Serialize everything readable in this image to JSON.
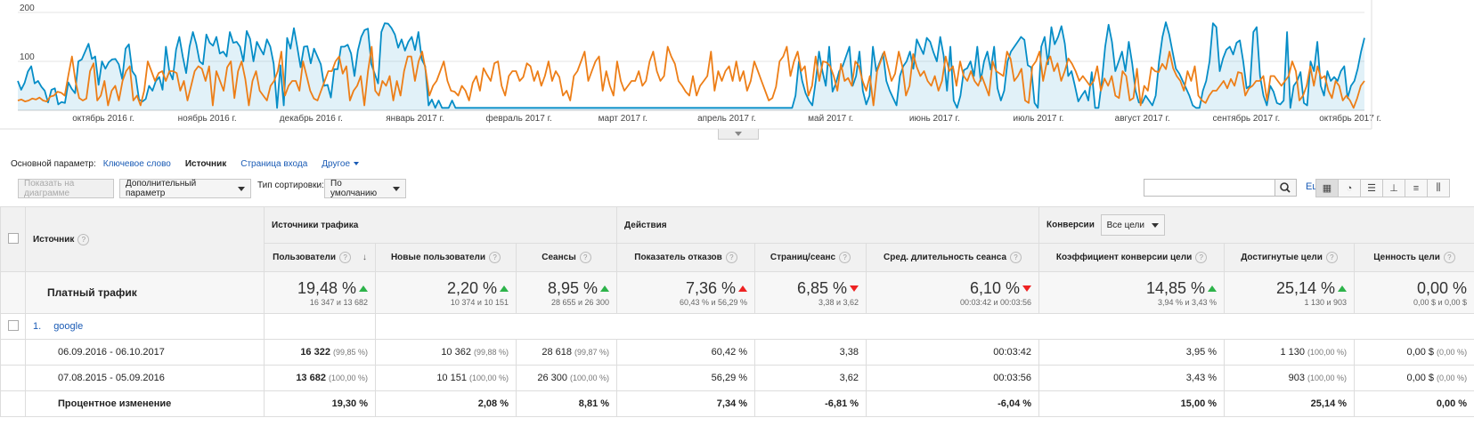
{
  "chart_data": {
    "type": "line",
    "title": "",
    "y_ticks": [
      "200",
      "100"
    ],
    "y_range": [
      0,
      200
    ],
    "x_labels": [
      "октябрь 2016 г.",
      "ноябрь 2016 г.",
      "декабрь 2016 г.",
      "январь 2017 г.",
      "февраль 2017 г.",
      "март 2017 г.",
      "апрель 2017 г.",
      "май 2017 г.",
      "июнь 2017 г.",
      "июль 2017 г.",
      "август 2017 г.",
      "сентябрь 2017 г.",
      "октябрь 2017 г."
    ],
    "series": [
      {
        "color": "#058dc7",
        "values": [
          60,
          42,
          56,
          79,
          90,
          55,
          60,
          48,
          40,
          16,
          42,
          45,
          12,
          17,
          15,
          57,
          44,
          35,
          100,
          104,
          120,
          136,
          105,
          110,
          52,
          100,
          85,
          98,
          104,
          105,
          94,
          64,
          126,
          135,
          80,
          70,
          22,
          18,
          23,
          50,
          40,
          60,
          68,
          42,
          130,
          80,
          63,
          124,
          150,
          110,
          76,
          130,
          160,
          136,
          100,
          94,
          155,
          138,
          132,
          150,
          116,
          120,
          110,
          160,
          138,
          140,
          130,
          100,
          162,
          146,
          100,
          140,
          126,
          114,
          145,
          130,
          95,
          5,
          92,
          10,
          148,
          126,
          168,
          130,
          88,
          130,
          131,
          96,
          126,
          110,
          94,
          50,
          52,
          26,
          84,
          84,
          130,
          130,
          134,
          116,
          70,
          122,
          150,
          164,
          167,
          95,
          75,
          55,
          160,
          178,
          177,
          168,
          155,
          128,
          145,
          122,
          140,
          150,
          123,
          160,
          104,
          90,
          10,
          22,
          5,
          20,
          5,
          5,
          5,
          20,
          5,
          5,
          5,
          5,
          5,
          5,
          5,
          5,
          5,
          5,
          5,
          5,
          5,
          5,
          5,
          5,
          5,
          5,
          5,
          5,
          5,
          5,
          5,
          5,
          5,
          5,
          5,
          5,
          5,
          5,
          5,
          5,
          5,
          5,
          5,
          5,
          5,
          5,
          5,
          5,
          5,
          5,
          5,
          5,
          5,
          5,
          5,
          5,
          5,
          5,
          5,
          5,
          5,
          5,
          5,
          5,
          5,
          5,
          5,
          5,
          5,
          5,
          5,
          5,
          5,
          5,
          5,
          5,
          5,
          5,
          5,
          5,
          5,
          5,
          5,
          5,
          5,
          5,
          5,
          5,
          5,
          5,
          5,
          5,
          5,
          5,
          5,
          5,
          5,
          5,
          5,
          5,
          5,
          5,
          5,
          5,
          5,
          5,
          5,
          5,
          5,
          30,
          100,
          60,
          35,
          20,
          10,
          60,
          120,
          80,
          50,
          130,
          38,
          55,
          80,
          90,
          110,
          130,
          50,
          70,
          120,
          40,
          12,
          30,
          130,
          80,
          98,
          116,
          60,
          40,
          25,
          10,
          70,
          90,
          100,
          120,
          85,
          145,
          130,
          115,
          148,
          140,
          118,
          100,
          150,
          112,
          40,
          130,
          20,
          5,
          30,
          82,
          86,
          100,
          70,
          130,
          60,
          100,
          120,
          83,
          130,
          45,
          20,
          40,
          100,
          120,
          130,
          140,
          150,
          144,
          92,
          88,
          15,
          5,
          130,
          150,
          94,
          170,
          135,
          150,
          172,
          136,
          70,
          80,
          50,
          18,
          30,
          40,
          20,
          78,
          5,
          5,
          60,
          130,
          175,
          140,
          80,
          100,
          120,
          80,
          140,
          96,
          40,
          16,
          15,
          30,
          20,
          10,
          30,
          100,
          150,
          180,
          155,
          120,
          85,
          75,
          60,
          45,
          30,
          10,
          5,
          5,
          40,
          60,
          100,
          178,
          170,
          80,
          106,
          124,
          130,
          114,
          138,
          143,
          100,
          45,
          50,
          160,
          170,
          70,
          30,
          10,
          50,
          38,
          15,
          12,
          20,
          160,
          5,
          50,
          60,
          78,
          15,
          10,
          100,
          80,
          140,
          50,
          30,
          80,
          60,
          68,
          60,
          80,
          90,
          25,
          50,
          60,
          85,
          120,
          148
        ]
      },
      {
        "color": "#ed7e17",
        "values": [
          20,
          22,
          18,
          20,
          24,
          22,
          26,
          20,
          18,
          28,
          30,
          38,
          36,
          30,
          72,
          110,
          58,
          25,
          20,
          24,
          80,
          96,
          20,
          30,
          60,
          10,
          40,
          50,
          20,
          60,
          80,
          90,
          20,
          30,
          10,
          40,
          100,
          80,
          60,
          76,
          80,
          60,
          80,
          80,
          76,
          40,
          60,
          20,
          50,
          80,
          90,
          85,
          60,
          90,
          10,
          80,
          60,
          40,
          88,
          100,
          25,
          80,
          100,
          64,
          10,
          60,
          80,
          40,
          30,
          20,
          50,
          60,
          80,
          120,
          30,
          50,
          60,
          60,
          40,
          100,
          70,
          40,
          24,
          20,
          40,
          60,
          80,
          80,
          100,
          110,
          75,
          90,
          20,
          40,
          50,
          70,
          10,
          80,
          130,
          40,
          30,
          60,
          50,
          70,
          20,
          60,
          30,
          80,
          110,
          110,
          60,
          100,
          120,
          80,
          30,
          50,
          60,
          80,
          100,
          60,
          40,
          38,
          30,
          50,
          40,
          20,
          56,
          70,
          40,
          86,
          72,
          60,
          96,
          100,
          50,
          30,
          70,
          80,
          80,
          60,
          68,
          96,
          90,
          60,
          80,
          50,
          70,
          100,
          60,
          80,
          68,
          30,
          40,
          20,
          70,
          80,
          100,
          120,
          60,
          80,
          100,
          110,
          40,
          80,
          50,
          30,
          100,
          60,
          40,
          50,
          60,
          60,
          80,
          50,
          60,
          100,
          120,
          80,
          60,
          70,
          130,
          110,
          95,
          60,
          50,
          38,
          30,
          70,
          30,
          50,
          60,
          70,
          120,
          40,
          80,
          60,
          80,
          90,
          60,
          100,
          60,
          80,
          40,
          60,
          100,
          80,
          60,
          40,
          20,
          25,
          48,
          100,
          110,
          130,
          70,
          100,
          120,
          80,
          90,
          30,
          50,
          110,
          60,
          100,
          98,
          90,
          70,
          40,
          95,
          60,
          66,
          50,
          100,
          90,
          60,
          40,
          70,
          10,
          80,
          100,
          120,
          90,
          60,
          75,
          120,
          90,
          30,
          50,
          115,
          88,
          70,
          80,
          60,
          50,
          70,
          40,
          60,
          110,
          80,
          90,
          50,
          100,
          70,
          60,
          80,
          60,
          50,
          70,
          50,
          30,
          100,
          80,
          75,
          70,
          120,
          105,
          60,
          70,
          85,
          20,
          15,
          90,
          100,
          120,
          60,
          98,
          110,
          80,
          96,
          60,
          80,
          106,
          95,
          80,
          60,
          70,
          60,
          50,
          60,
          90,
          40,
          65,
          50,
          70,
          30,
          25,
          80,
          70,
          20,
          25,
          85,
          10,
          50,
          40,
          88,
          80,
          78,
          95,
          84,
          120,
          86,
          70,
          60,
          40,
          80,
          60,
          90,
          30,
          20,
          15,
          30,
          40,
          40,
          50,
          60,
          45,
          64,
          50,
          78,
          76,
          30,
          45,
          50,
          60,
          60,
          70,
          20,
          70,
          70,
          60,
          50,
          60,
          70,
          100,
          80,
          20,
          30,
          50,
          90,
          50,
          90,
          65,
          70,
          40,
          25,
          60,
          50,
          20,
          30,
          20,
          5,
          25,
          50,
          60
        ]
      }
    ]
  },
  "dimension_bar": {
    "label": "Основной параметр:",
    "opt1": "Ключевое слово",
    "active": "Источник",
    "opt3": "Страница входа",
    "opt4": "Другое"
  },
  "toolbar": {
    "plot_rows": "Показать на диаграмме",
    "secondary": "Дополнительный параметр",
    "sort_label": "Тип сортировки:",
    "sort_value": "По умолчанию",
    "more": "Ещё..."
  },
  "table": {
    "dim_header": "Источник",
    "groups": {
      "acquisition": "Источники трафика",
      "behavior": "Действия",
      "conversions": "Конверсии",
      "goal_select": "Все цели"
    },
    "columns": [
      "Пользователи",
      "Новые пользователи",
      "Сеансы",
      "Показатель отказов",
      "Страниц/сеанс",
      "Сред. длительность сеанса",
      "Коэффициент конверсии цели",
      "Достигнутые цели",
      "Ценность цели"
    ],
    "totals": {
      "label": "Платный трафик",
      "cells": [
        {
          "big": "19,48 %",
          "sm": "16 347 и 13 682",
          "dir": "up"
        },
        {
          "big": "2,20 %",
          "sm": "10 374 и 10 151",
          "dir": "up"
        },
        {
          "big": "8,95 %",
          "sm": "28 655 и 26 300",
          "dir": "up"
        },
        {
          "big": "7,36 %",
          "sm": "60,43 % и 56,29 %",
          "dir": "dnred"
        },
        {
          "big": "6,85 %",
          "sm": "3,38 и 3,62",
          "dir": "dn"
        },
        {
          "big": "6,10 %",
          "sm": "00:03:42 и 00:03:56",
          "dir": "dn"
        },
        {
          "big": "14,85 %",
          "sm": "3,94 % и 3,43 %",
          "dir": "up"
        },
        {
          "big": "25,14 %",
          "sm": "1 130 и 903",
          "dir": "up"
        },
        {
          "big": "0,00 %",
          "sm": "0,00 $ и 0,00 $",
          "dir": ""
        }
      ]
    },
    "group_row": {
      "index": "1.",
      "name": "google"
    },
    "rows": [
      {
        "label": "06.09.2016 - 06.10.2017",
        "cells": [
          {
            "v": "16 322",
            "p": "(99,85 %)",
            "bold": true
          },
          {
            "v": "10 362",
            "p": "(99,88 %)"
          },
          {
            "v": "28 618",
            "p": "(99,87 %)"
          },
          {
            "v": "60,42 %",
            "p": ""
          },
          {
            "v": "3,38",
            "p": ""
          },
          {
            "v": "00:03:42",
            "p": ""
          },
          {
            "v": "3,95 %",
            "p": ""
          },
          {
            "v": "1 130",
            "p": "(100,00 %)"
          },
          {
            "v": "0,00 $",
            "p": "(0,00 %)"
          }
        ]
      },
      {
        "label": "07.08.2015 - 05.09.2016",
        "cells": [
          {
            "v": "13 682",
            "p": "(100,00 %)",
            "bold": true
          },
          {
            "v": "10 151",
            "p": "(100,00 %)"
          },
          {
            "v": "26 300",
            "p": "(100,00 %)"
          },
          {
            "v": "56,29 %",
            "p": ""
          },
          {
            "v": "3,62",
            "p": ""
          },
          {
            "v": "00:03:56",
            "p": ""
          },
          {
            "v": "3,43 %",
            "p": ""
          },
          {
            "v": "903",
            "p": "(100,00 %)"
          },
          {
            "v": "0,00 $",
            "p": "(0,00 %)"
          }
        ]
      }
    ],
    "change_row": {
      "label": "Процентное изменение",
      "cells": [
        "19,30 %",
        "2,08 %",
        "8,81 %",
        "7,34 %",
        "-6,81 %",
        "-6,04 %",
        "15,00 %",
        "25,14 %",
        "0,00 %"
      ]
    }
  }
}
